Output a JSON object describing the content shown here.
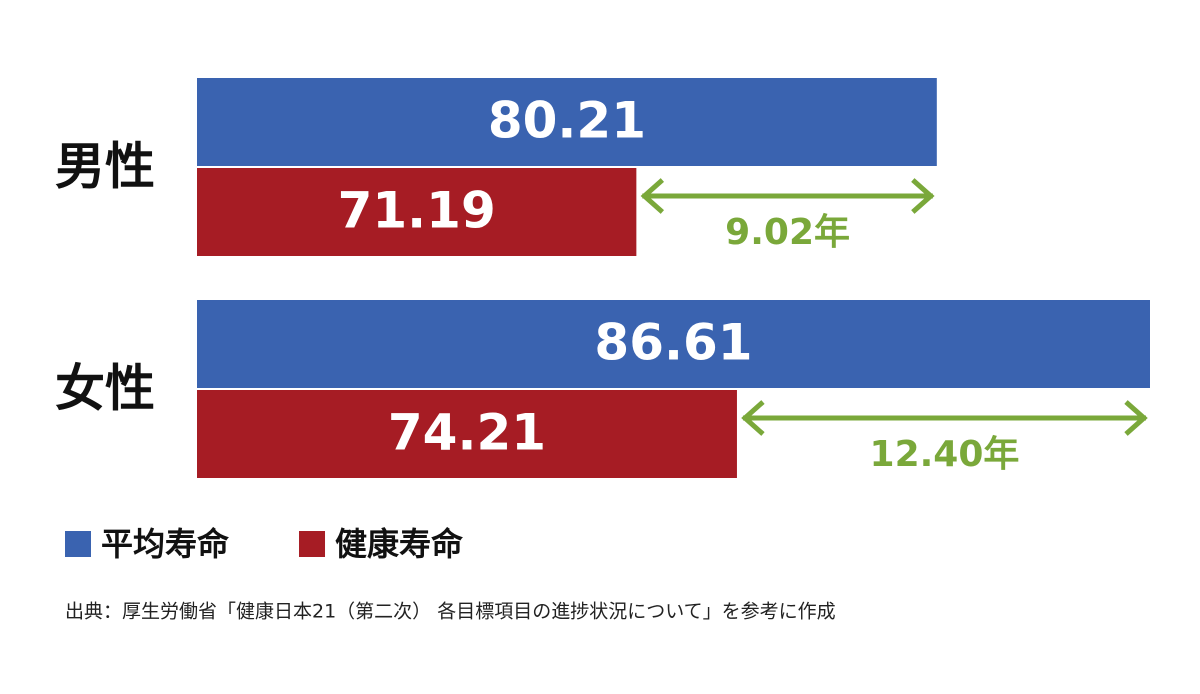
{
  "chart_data": {
    "type": "bar",
    "orientation": "horizontal",
    "categories": [
      "男性",
      "女性"
    ],
    "series": [
      {
        "name": "平均寿命",
        "color": "#3a63b0",
        "values": [
          80.21,
          86.61
        ]
      },
      {
        "name": "健康寿命",
        "color": "#a61c24",
        "values": [
          71.19,
          74.21
        ]
      }
    ],
    "xlim": [
      58,
      86.61
    ],
    "annotations": [
      "9.02年",
      "12.40年"
    ],
    "annotation_color": "#7aa83a",
    "legend": "bottom-left",
    "source": "出典：厚生労働省「健康日本21（第二次） 各目標項目の進捗状況について」を参考に作成"
  }
}
